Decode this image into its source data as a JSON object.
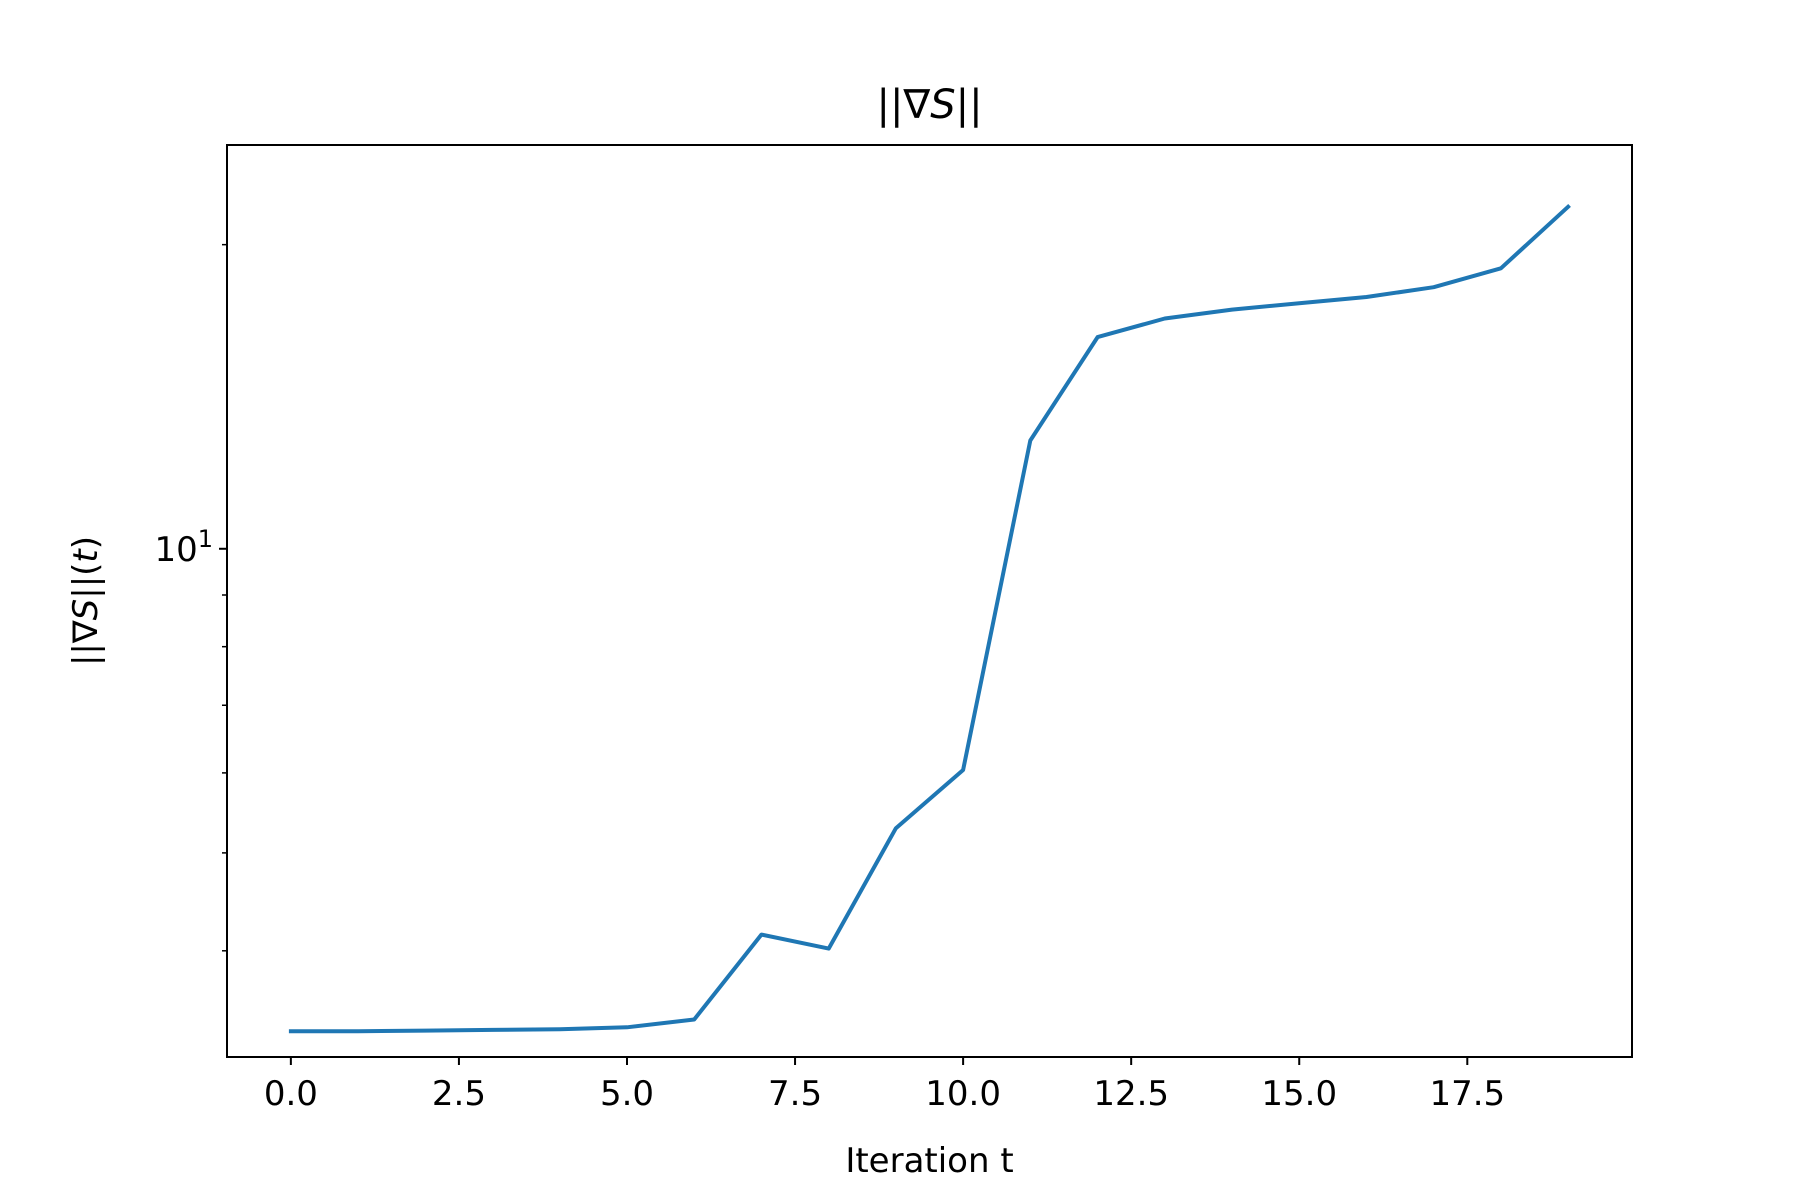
{
  "chart_data": {
    "type": "line",
    "title": "||∇S||",
    "xlabel": "Iteration t",
    "ylabel": "||∇S||(t)",
    "x_scale": "linear",
    "y_scale": "log",
    "xlim": [
      -0.95,
      19.95
    ],
    "ylim": [
      3.14,
      25.1
    ],
    "x_ticks": [
      0.0,
      2.5,
      5.0,
      7.5,
      10.0,
      12.5,
      15.0,
      17.5
    ],
    "x_tick_labels": [
      "0.0",
      "2.5",
      "5.0",
      "7.5",
      "10.0",
      "12.5",
      "15.0",
      "17.5"
    ],
    "y_major_ticks": [
      10
    ],
    "y_tick_label": {
      "base": "10",
      "exponent": "1"
    },
    "y_minor_ticks": [
      4,
      5,
      6,
      7,
      8,
      9,
      20
    ],
    "grid": false,
    "legend": false,
    "series": [
      {
        "color": "#1f77b4",
        "x": [
          0,
          1,
          2,
          3,
          4,
          5,
          6,
          7,
          8,
          9,
          10,
          11,
          12,
          13,
          14,
          15,
          16,
          17,
          18,
          19
        ],
        "values": [
          3.33,
          3.33,
          3.335,
          3.34,
          3.345,
          3.36,
          3.42,
          4.15,
          4.02,
          5.29,
          6.04,
          12.8,
          16.2,
          16.9,
          17.25,
          17.5,
          17.75,
          18.15,
          18.95,
          21.8
        ]
      }
    ]
  }
}
